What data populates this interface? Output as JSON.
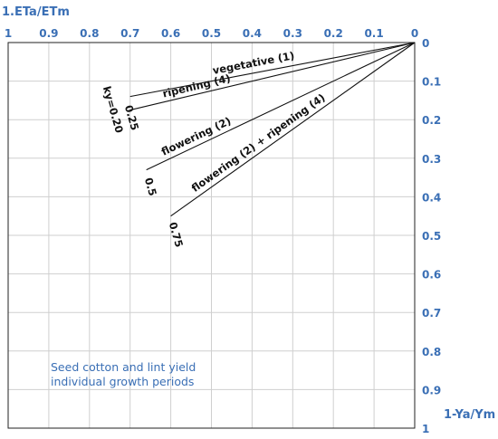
{
  "chart_data": {
    "type": "line",
    "xlabel": "1.ETa/ETm",
    "ylabel": "1-Ya/Ym",
    "xlim": [
      1,
      0
    ],
    "ylim": [
      0,
      1
    ],
    "x_ticks": [
      "1",
      "0.9",
      "0.8",
      "0.7",
      "0.6",
      "0.5",
      "0.4",
      "0.3",
      "0.2",
      "0.1",
      "0"
    ],
    "y_ticks": [
      "0",
      "0.1",
      "0.2",
      "0.3",
      "0.4",
      "0.5",
      "0.6",
      "0.7",
      "0.8",
      "0.9",
      "1"
    ],
    "grid": true,
    "series": [
      {
        "name": "vegetative (1)",
        "ky": "ky=0.20",
        "x": [
          0,
          0.7
        ],
        "y": [
          0,
          0.14
        ]
      },
      {
        "name": "ripening (4)",
        "ky": "0.25",
        "x": [
          0,
          0.7
        ],
        "y": [
          0,
          0.175
        ]
      },
      {
        "name": "flowering (2)",
        "ky": "0.5",
        "x": [
          0,
          0.66
        ],
        "y": [
          0,
          0.33
        ]
      },
      {
        "name": "flowering (2) + ripening (4)",
        "ky": "0.75",
        "x": [
          0,
          0.6
        ],
        "y": [
          0,
          0.45
        ]
      }
    ],
    "annotation": [
      "Seed cotton and lint yield",
      "individual growth periods"
    ]
  }
}
